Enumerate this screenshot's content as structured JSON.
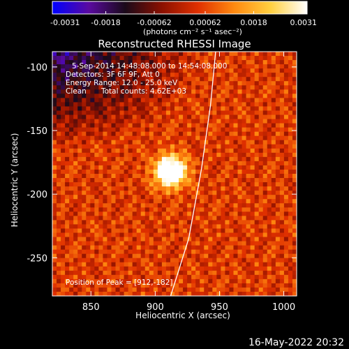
{
  "colorbar": {
    "tick_labels": [
      "-0.0031",
      "-0.0018",
      "-0.00062",
      "0.00062",
      "0.0018",
      "0.0031"
    ],
    "tick_values": [
      -0.0031,
      -0.0018,
      -0.00062,
      0.00062,
      0.0018,
      0.0031
    ],
    "range": [
      -0.0031,
      0.0031
    ],
    "unit_label": "(photons cm⁻² s⁻¹ asec⁻²)",
    "colormap": [
      "#0000ff",
      "#5a0aa0",
      "#1a0a1a",
      "#8a1000",
      "#e03000",
      "#ff8a10",
      "#ffd040",
      "#ffffff"
    ]
  },
  "plot": {
    "title": "Reconstructed RHESSI Image",
    "annotations": {
      "time": "5-Sep-2014 14:48:08.000 to 14:54:08.000",
      "detectors": "Detectors: 3F 6F 9F, Att 0",
      "energy": "Energy Range: 12.0 - 25.0 keV",
      "method": "Clean",
      "counts": "Total counts: 4.62E+03",
      "peak": "Position of Peak = [912,-182]"
    },
    "timestamp": "16-May-2022 20:32"
  },
  "chart_data": {
    "type": "heatmap",
    "title": "Reconstructed RHESSI Image",
    "xlabel": "Heliocentric X (arcsec)",
    "ylabel": "Heliocentric Y (arcsec)",
    "xlim": [
      820,
      1010
    ],
    "ylim": [
      -280,
      -88
    ],
    "x_ticks": [
      850,
      900,
      950,
      1000
    ],
    "x_tick_labels": [
      "850",
      "900",
      "950",
      "1000"
    ],
    "y_ticks": [
      -100,
      -150,
      -200,
      -250
    ],
    "y_tick_labels": [
      "-100",
      "-150",
      "-200",
      "-250"
    ],
    "peak": {
      "x": 912,
      "y": -182
    },
    "limb": [
      [
        912,
        -280
      ],
      [
        926,
        -235
      ],
      [
        936,
        -180
      ],
      [
        943,
        -130
      ],
      [
        947,
        -88
      ]
    ],
    "value_range": [
      -0.0031,
      0.0031
    ]
  }
}
